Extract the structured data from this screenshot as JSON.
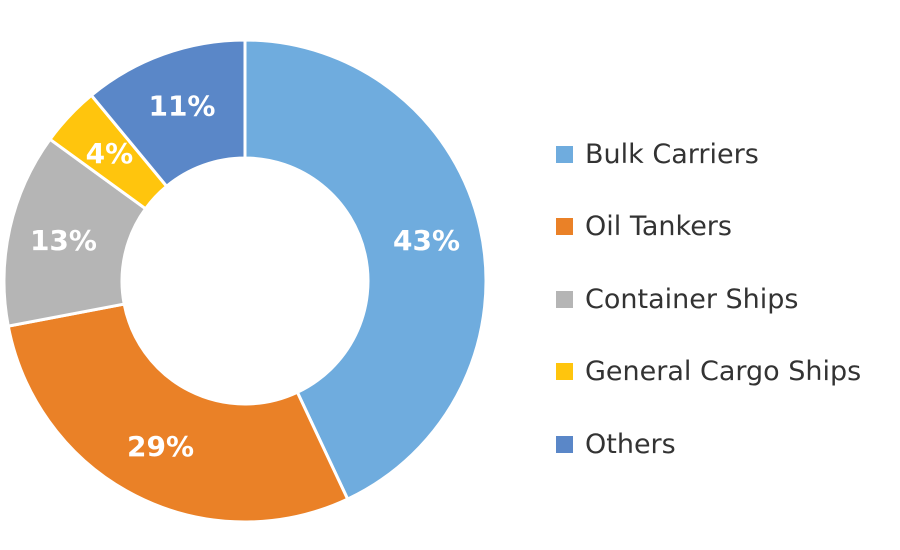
{
  "chart_data": {
    "type": "pie",
    "title": "",
    "categories": [
      "Bulk Carriers",
      "Oil Tankers",
      "Container Ships",
      "General Cargo Ships",
      "Others"
    ],
    "values": [
      43,
      29,
      13,
      4,
      11
    ],
    "labels": [
      "43%",
      "29%",
      "13%",
      "4%",
      "11%"
    ],
    "colors": [
      "#6FACDE",
      "#EA8127",
      "#B5B5B5",
      "#FFC50D",
      "#5A87C8"
    ],
    "donut": true,
    "start_angle": "12 o'clock",
    "direction": "clockwise",
    "legend_position": "right"
  },
  "legend": {
    "items": [
      {
        "label": "Bulk Carriers",
        "color": "#6FACDE"
      },
      {
        "label": "Oil Tankers",
        "color": "#EA8127"
      },
      {
        "label": "Container Ships",
        "color": "#B5B5B5"
      },
      {
        "label": "General Cargo Ships",
        "color": "#FFC50D"
      },
      {
        "label": "Others",
        "color": "#5A87C8"
      }
    ]
  }
}
